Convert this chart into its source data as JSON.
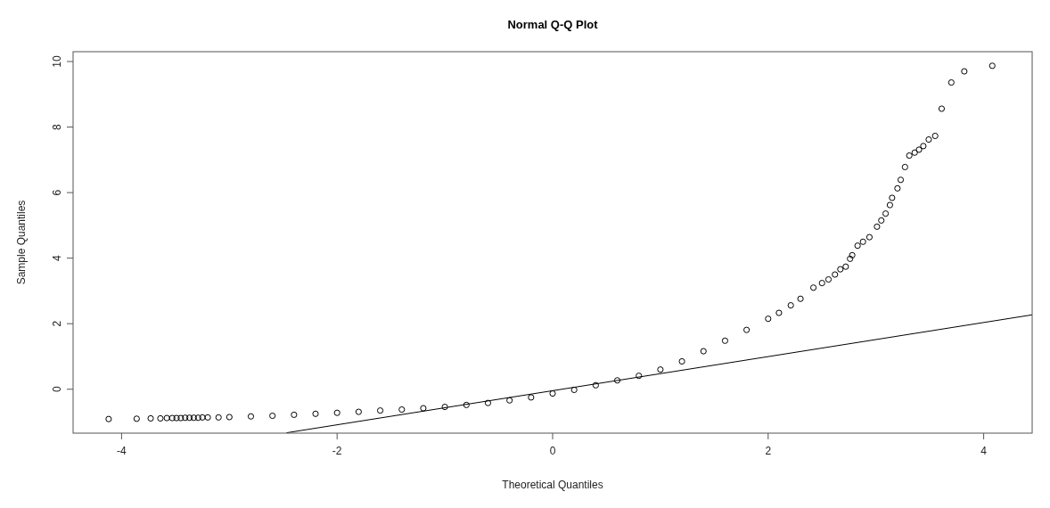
{
  "chart_data": {
    "type": "scatter",
    "title": "Normal Q-Q Plot",
    "xlabel": "Theoretical Quantiles",
    "ylabel": "Sample Quantiles",
    "xlim": [
      -4.45,
      4.45
    ],
    "ylim": [
      -1.34,
      10.3
    ],
    "xticks": [
      -4,
      -2,
      0,
      2,
      4
    ],
    "yticks": [
      0,
      2,
      4,
      6,
      8,
      10
    ],
    "grid": false,
    "series": [
      {
        "color": "#000000",
        "marker": "circle",
        "x": [
          -4.12,
          -3.86,
          -3.73,
          -3.64,
          -3.58,
          -3.53,
          -3.49,
          -3.45,
          -3.41,
          -3.37,
          -3.33,
          -3.29,
          -3.25,
          -3.2,
          -3.1,
          -3.0,
          -2.8,
          -2.6,
          -2.4,
          -2.2,
          -2.0,
          -1.8,
          -1.6,
          -1.4,
          -1.2,
          -1.0,
          -0.8,
          -0.6,
          -0.4,
          -0.2,
          0.0,
          0.2,
          0.4,
          0.6,
          0.8,
          1.0,
          1.2,
          1.4,
          1.6,
          1.8,
          2.0,
          2.1,
          2.21,
          2.3,
          2.42,
          2.5,
          2.56,
          2.62,
          2.67,
          2.72,
          2.76,
          2.78,
          2.83,
          2.88,
          2.94,
          3.01,
          3.05,
          3.09,
          3.13,
          3.15,
          3.2,
          3.23,
          3.27,
          3.31,
          3.36,
          3.4,
          3.44,
          3.49,
          3.55,
          3.61,
          3.7,
          3.82,
          4.08
        ],
        "values": [
          -0.91,
          -0.9,
          -0.89,
          -0.89,
          -0.88,
          -0.88,
          -0.88,
          -0.88,
          -0.87,
          -0.87,
          -0.87,
          -0.87,
          -0.86,
          -0.86,
          -0.86,
          -0.85,
          -0.83,
          -0.81,
          -0.78,
          -0.75,
          -0.72,
          -0.69,
          -0.65,
          -0.62,
          -0.58,
          -0.54,
          -0.48,
          -0.42,
          -0.34,
          -0.25,
          -0.13,
          -0.02,
          0.12,
          0.27,
          0.41,
          0.6,
          0.85,
          1.16,
          1.48,
          1.81,
          2.15,
          2.33,
          2.56,
          2.76,
          3.1,
          3.24,
          3.35,
          3.5,
          3.66,
          3.74,
          3.98,
          4.09,
          4.38,
          4.5,
          4.64,
          4.96,
          5.15,
          5.36,
          5.62,
          5.84,
          6.13,
          6.39,
          6.78,
          7.13,
          7.22,
          7.31,
          7.42,
          7.62,
          7.73,
          8.56,
          9.36,
          9.7,
          9.87
        ]
      },
      {
        "type": "line",
        "color": "#000000",
        "x": [
          -2.47,
          4.45
        ],
        "values": [
          -1.33,
          2.27
        ]
      }
    ]
  }
}
